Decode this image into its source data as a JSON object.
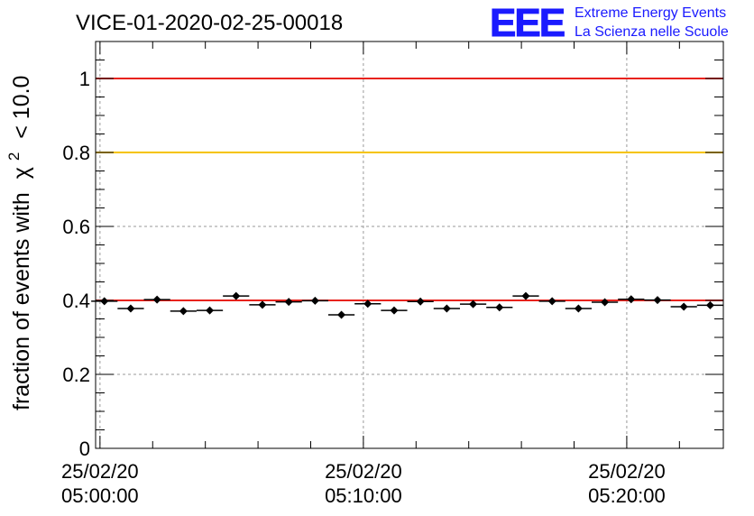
{
  "chart_data": {
    "type": "scatter",
    "title": "VICE-01-2020-02-25-00018",
    "ylabel_prefix": "fraction of events with",
    "ylabel_symbol": "χ",
    "ylabel_sup": "2",
    "ylabel_suffix": "< 10.0",
    "ylim": [
      0,
      1.1
    ],
    "y_ticks": [
      0,
      0.2,
      0.4,
      0.6,
      0.8,
      1
    ],
    "y_tick_labels": [
      "0",
      "0.2",
      "0.4",
      "0.6",
      "0.8",
      "1"
    ],
    "x_ticks": [
      {
        "line1": "25/02/20",
        "line2": "05:00:00"
      },
      {
        "line1": "25/02/20",
        "line2": "05:10:00"
      },
      {
        "line1": "25/02/20",
        "line2": "05:20:00"
      }
    ],
    "grid": true,
    "reference_lines": [
      {
        "value": 1.0,
        "color": "#e8221c"
      },
      {
        "value": 0.8,
        "color": "#f5c400"
      },
      {
        "value": 0.4,
        "color": "#e8221c"
      }
    ],
    "values": [
      0.398,
      0.378,
      0.402,
      0.371,
      0.373,
      0.412,
      0.388,
      0.396,
      0.399,
      0.361,
      0.391,
      0.373,
      0.397,
      0.378,
      0.39,
      0.381,
      0.412,
      0.398,
      0.378,
      0.395,
      0.403,
      0.401,
      0.383,
      0.387
    ]
  },
  "logo": {
    "text": "EEE",
    "line1": "Extreme Energy Events",
    "line2": "La Scienza nelle Scuole",
    "color": "#1a1aff"
  }
}
